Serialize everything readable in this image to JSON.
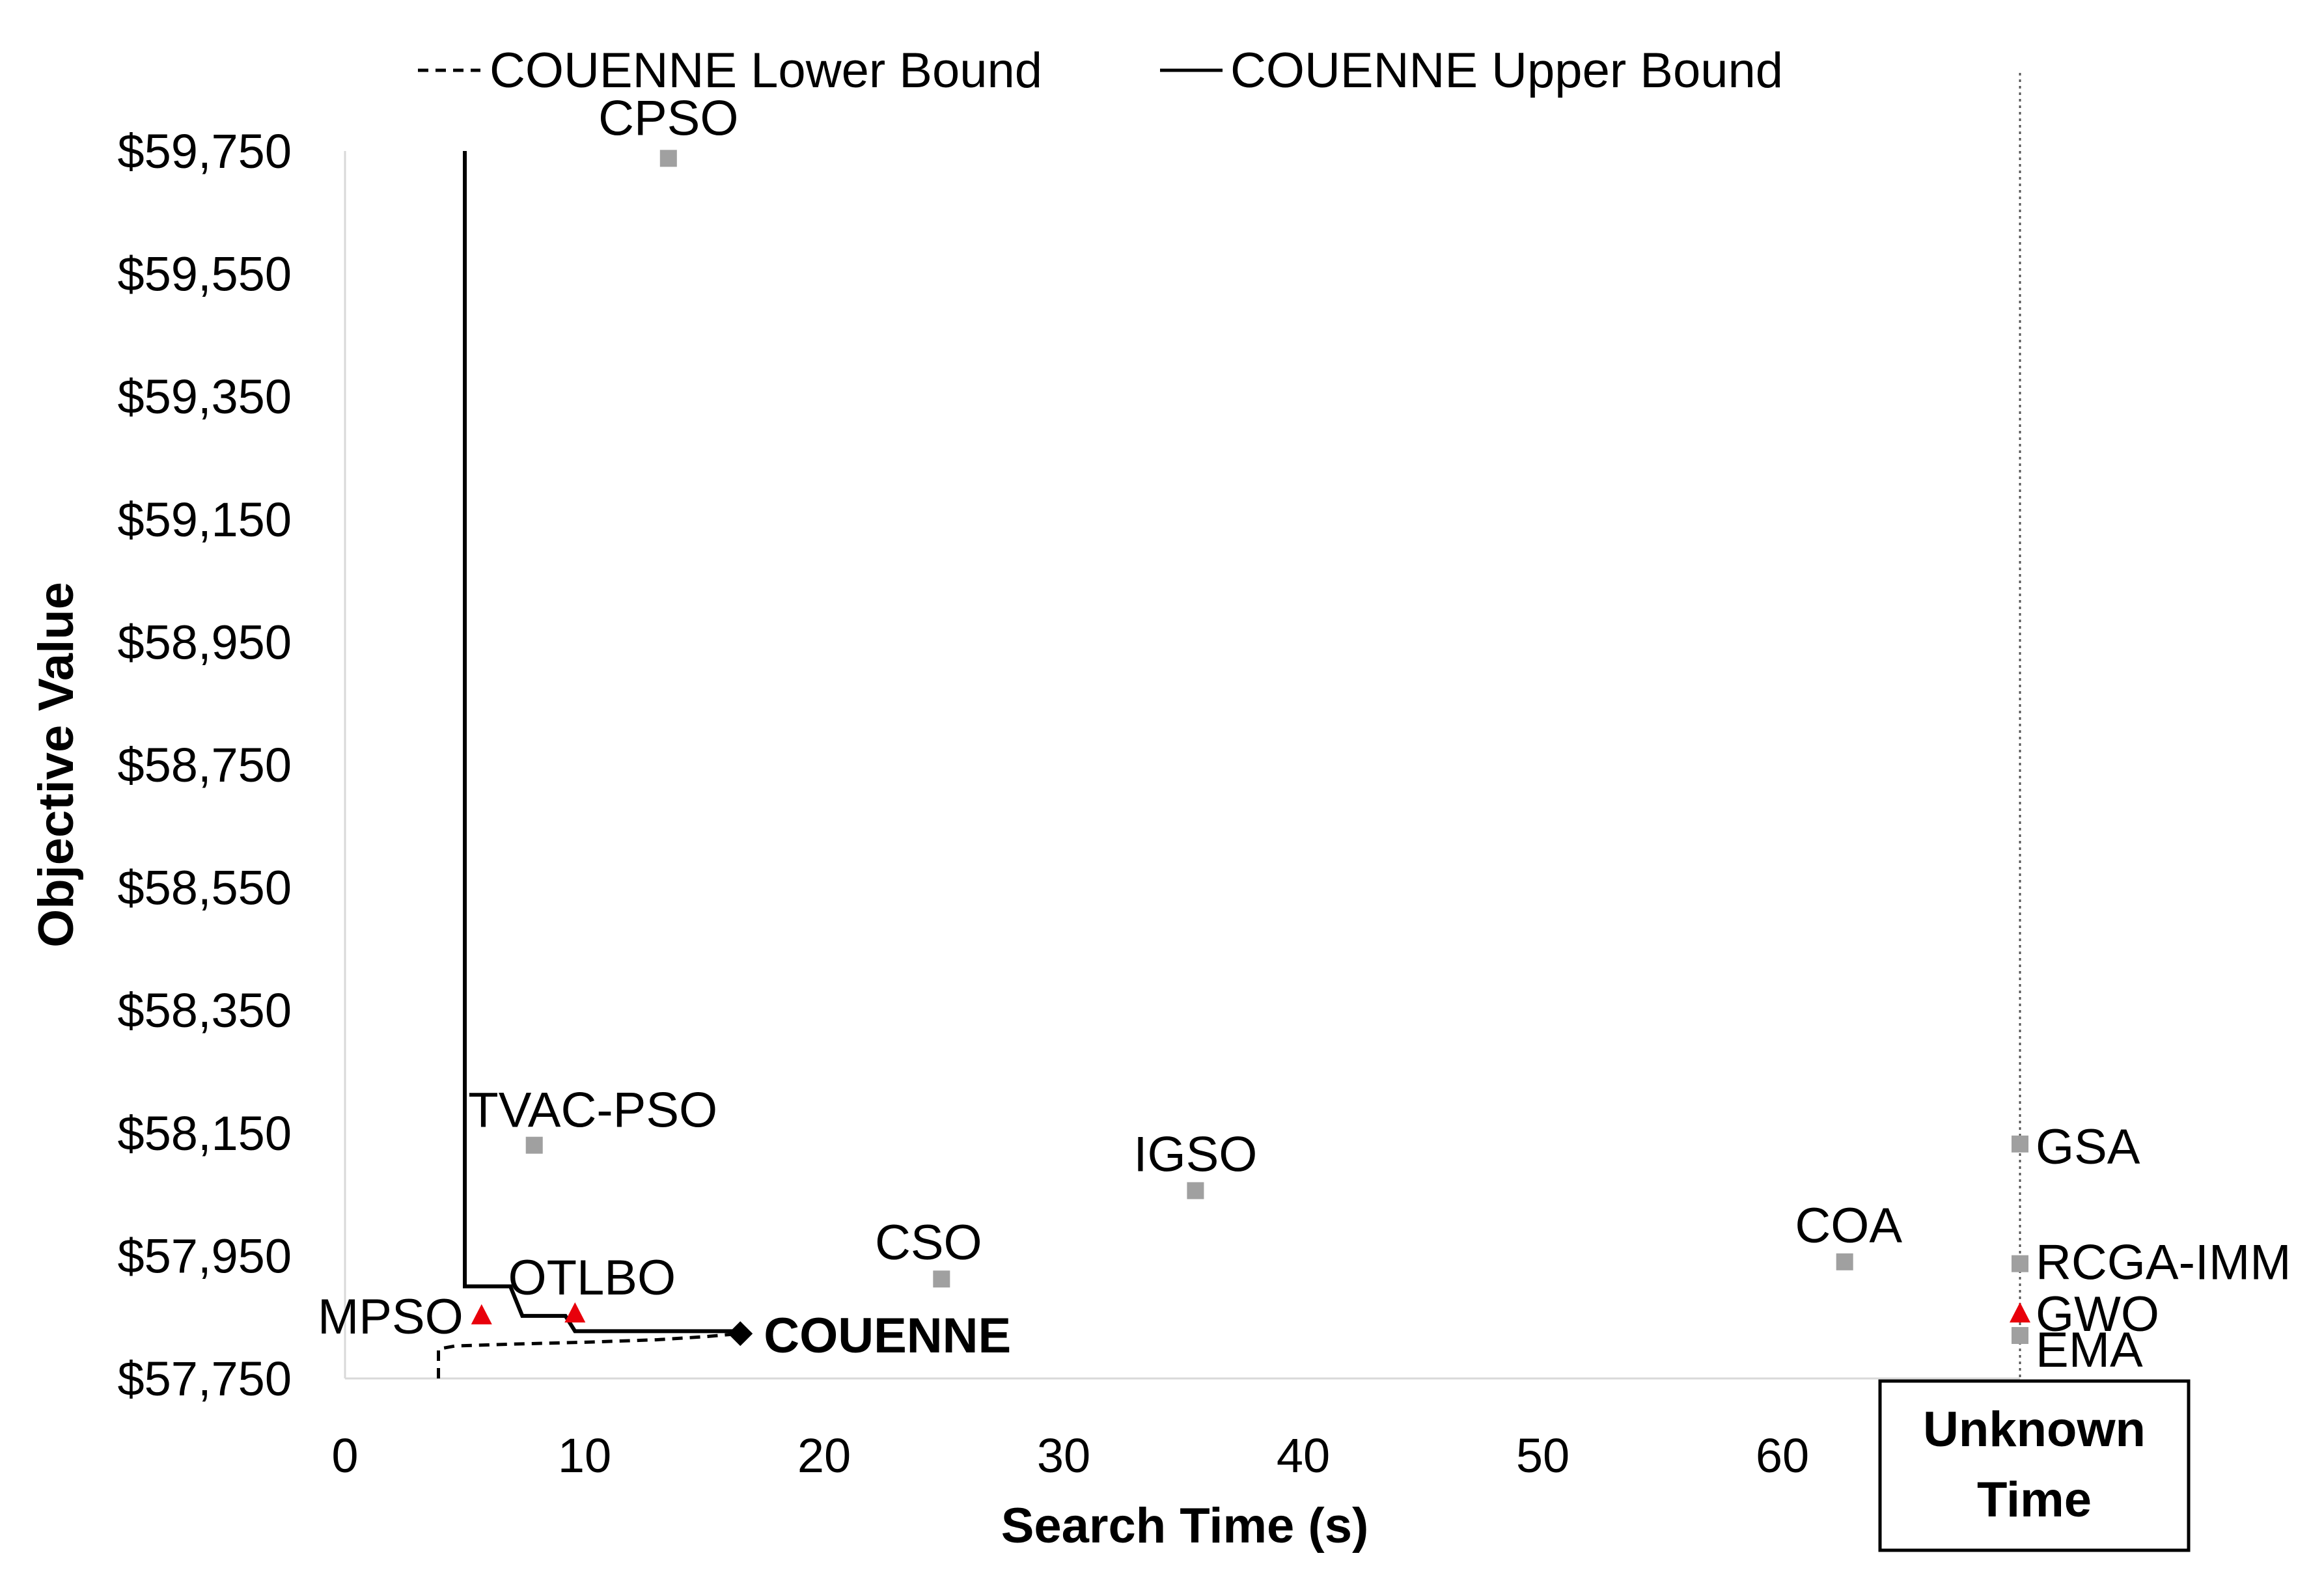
{
  "chart_data": {
    "type": "scatter",
    "xlabel": "Search Time (s)",
    "ylabel": "Objective Value",
    "xlim": [
      0,
      70
    ],
    "ylim": [
      57750,
      59750
    ],
    "x_ticks": [
      0,
      10,
      20,
      30,
      40,
      50,
      60
    ],
    "x_tick_labels": [
      "0",
      "10",
      "20",
      "30",
      "40",
      "50",
      "60"
    ],
    "y_ticks": [
      57750,
      57950,
      58150,
      58350,
      58550,
      58750,
      58950,
      59150,
      59350,
      59550,
      59750
    ],
    "y_tick_labels": [
      "$57,750",
      "$57,950",
      "$58,150",
      "$58,350",
      "$58,550",
      "$58,750",
      "$58,950",
      "$59,150",
      "$59,350",
      "$59,550",
      "$59,750"
    ],
    "grid": false,
    "legend_position": "top",
    "legend": [
      {
        "label": "COUENNE Lower Bound",
        "style": "dashed"
      },
      {
        "label": "COUENNE Upper Bound",
        "style": "solid"
      }
    ],
    "lower_bound": {
      "style": "dashed",
      "color": "#000000",
      "points": [
        [
          3.9,
          57750
        ],
        [
          3.9,
          57798
        ],
        [
          4.6,
          57803
        ],
        [
          7,
          57806
        ],
        [
          10,
          57809
        ],
        [
          13,
          57813
        ],
        [
          15,
          57818
        ],
        [
          16.5,
          57823
        ]
      ]
    },
    "upper_bound": {
      "style": "solid",
      "color": "#000000",
      "points": [
        [
          5,
          59750
        ],
        [
          5,
          57900
        ],
        [
          6.9,
          57900
        ],
        [
          7.4,
          57852
        ],
        [
          9.2,
          57852
        ],
        [
          9.6,
          57827
        ],
        [
          16.5,
          57827
        ]
      ]
    },
    "couenne_final": {
      "label": "COUENNE",
      "x": 16.5,
      "y": 57823,
      "marker": "diamond",
      "color": "#000000"
    },
    "points": [
      {
        "label": "CPSO",
        "x": 13.5,
        "y": 59738,
        "marker": "square",
        "color": "#a0a0a0"
      },
      {
        "label": "TVAC-PSO",
        "x": 7.9,
        "y": 58130,
        "marker": "square",
        "color": "#a0a0a0"
      },
      {
        "label": "IGSO",
        "x": 35.5,
        "y": 58056,
        "marker": "square",
        "color": "#a0a0a0"
      },
      {
        "label": "CSO",
        "x": 24.9,
        "y": 57912,
        "marker": "square",
        "color": "#a0a0a0"
      },
      {
        "label": "COA",
        "x": 62.6,
        "y": 57940,
        "marker": "square",
        "color": "#a0a0a0"
      },
      {
        "label": "MPSO",
        "x": 5.7,
        "y": 57852,
        "marker": "triangle",
        "color": "#e8000b"
      },
      {
        "label": "OTLBO",
        "x": 9.6,
        "y": 57855,
        "marker": "triangle",
        "color": "#e8000b"
      }
    ],
    "unknown_time": {
      "box_line1": "Unknown",
      "box_line2": "Time",
      "points": [
        {
          "label": "GSA",
          "y": 58132,
          "marker": "square",
          "color": "#a0a0a0"
        },
        {
          "label": "RCGA-IMM",
          "y": 57937,
          "marker": "square",
          "color": "#a0a0a0"
        },
        {
          "label": "GWO",
          "y": 57855,
          "marker": "triangle",
          "color": "#e8000b"
        },
        {
          "label": "EMA",
          "y": 57820,
          "marker": "square",
          "color": "#a0a0a0"
        }
      ]
    }
  }
}
